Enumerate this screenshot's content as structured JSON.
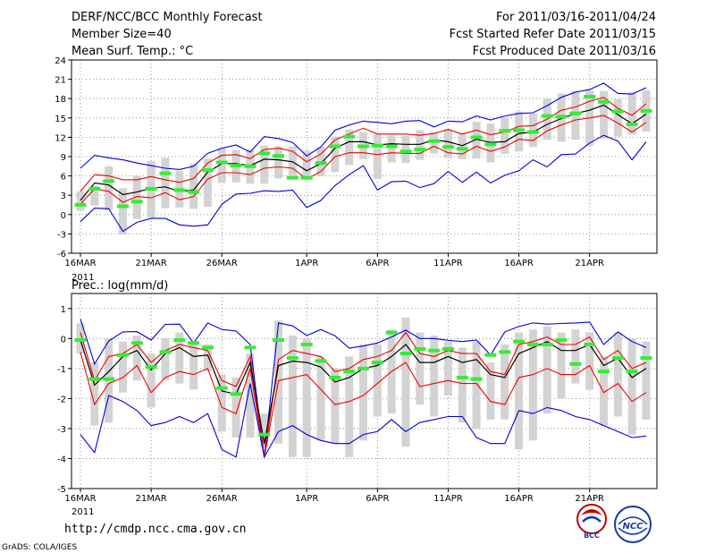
{
  "header": {
    "title": "DERF/NCC/BCC Monthly Forecast",
    "member_size": "Member Size=40",
    "period": "For 2011/03/16-2011/04/24",
    "started": "Fcst Started Refer Date 2011/03/15",
    "produced": "Fcst Produced Date 2011/03/16"
  },
  "footer": {
    "url": "http://cmdp.ncc.cma.gov.cn",
    "credit": "GrADS: COLA/IGES",
    "logo_bcc": "BCC",
    "logo_ncc": "NCC"
  },
  "colors": {
    "envelope": "#0000dd",
    "spread": "#ee0000",
    "mean": "#000000",
    "box": "#d3d3d3",
    "obs": "#33ee33"
  },
  "chart_data": [
    {
      "type": "line",
      "title": "Mean Surf. Temp.: °C",
      "ylim": [
        -6,
        24
      ],
      "yticks": [
        -6,
        -3,
        0,
        3,
        6,
        9,
        12,
        15,
        18,
        21,
        24
      ],
      "xlabels": [
        {
          "day": 0,
          "label": "16MAR"
        },
        {
          "day": 5,
          "label": "21MAR"
        },
        {
          "day": 10,
          "label": "26MAR"
        },
        {
          "day": 16,
          "label": "1APR"
        },
        {
          "day": 21,
          "label": "6APR"
        },
        {
          "day": 26,
          "label": "11APR"
        },
        {
          "day": 31,
          "label": "16APR"
        },
        {
          "day": 36,
          "label": "21APR"
        }
      ],
      "year_label": "2011",
      "series": [
        {
          "name": "max",
          "values": [
            7.2,
            9.2,
            8.8,
            8.5,
            8.0,
            7.6,
            7.2,
            7.0,
            7.5,
            9.5,
            10.3,
            10.8,
            9.7,
            12.1,
            11.8,
            11.2,
            9.1,
            10.5,
            13.1,
            13.9,
            14.5,
            14.3,
            14.1,
            14.5,
            14.6,
            13.6,
            14.5,
            14.4,
            15.3,
            14.7,
            15.3,
            15.7,
            15.8,
            16.9,
            18.2,
            19.0,
            19.4,
            20.4,
            18.8,
            18.7,
            19.7
          ]
        },
        {
          "name": "upper",
          "values": [
            3.6,
            6.2,
            6.0,
            5.4,
            5.4,
            5.9,
            5.4,
            5.0,
            5.6,
            8.0,
            9.2,
            9.3,
            8.7,
            10.1,
            10.3,
            9.8,
            8.2,
            9.4,
            11.6,
            12.5,
            13.4,
            12.5,
            12.5,
            12.5,
            12.3,
            12.6,
            13.2,
            12.5,
            13.1,
            12.4,
            12.8,
            13.7,
            13.8,
            14.8,
            16.2,
            16.7,
            17.6,
            18.2,
            16.5,
            15.4,
            17.2
          ]
        },
        {
          "name": "mean",
          "values": [
            2.2,
            4.9,
            4.6,
            3.1,
            3.5,
            4.1,
            4.3,
            3.6,
            3.8,
            6.6,
            7.9,
            7.9,
            7.6,
            8.6,
            8.5,
            8.2,
            6.8,
            7.9,
            10.3,
            11.3,
            11.3,
            10.8,
            11.0,
            10.9,
            10.9,
            11.6,
            11.3,
            10.7,
            11.7,
            11.2,
            11.3,
            12.6,
            12.8,
            14.0,
            14.9,
            15.7,
            16.2,
            17.0,
            15.5,
            14.1,
            15.6
          ]
        },
        {
          "name": "lower",
          "values": [
            1.6,
            4.0,
            3.6,
            1.9,
            2.8,
            2.6,
            3.4,
            2.3,
            2.8,
            5.5,
            6.5,
            6.5,
            6.2,
            7.2,
            7.4,
            7.2,
            5.5,
            6.7,
            9.0,
            9.6,
            9.6,
            9.3,
            9.6,
            9.5,
            9.5,
            10.6,
            9.6,
            9.4,
            10.6,
            9.8,
            10.5,
            11.7,
            11.5,
            13.0,
            13.9,
            14.7,
            15.0,
            15.4,
            14.2,
            12.8,
            14.3
          ]
        },
        {
          "name": "min",
          "values": [
            -1.1,
            1.0,
            0.9,
            -2.6,
            -1.2,
            -0.6,
            -0.6,
            -1.6,
            -1.8,
            -1.6,
            1.6,
            3.2,
            3.3,
            3.7,
            3.6,
            3.8,
            1.1,
            2.2,
            4.5,
            6.2,
            7.6,
            3.8,
            5.1,
            5.2,
            4.2,
            4.8,
            6.7,
            5.0,
            6.6,
            4.9,
            6.1,
            6.8,
            8.5,
            7.4,
            9.3,
            9.4,
            11.1,
            12.3,
            11.4,
            8.5,
            11.3
          ]
        }
      ],
      "box_low": [
        0.6,
        1.4,
        0.7,
        -3.1,
        -0.7,
        -0.5,
        1.0,
        1.1,
        0.9,
        1.2,
        4.9,
        5.0,
        4.8,
        4.8,
        5.6,
        5.9,
        6.0,
        6.0,
        6.6,
        7.7,
        8.6,
        5.5,
        8.1,
        8.0,
        8.5,
        9.5,
        8.8,
        8.6,
        8.7,
        8.1,
        9.4,
        9.8,
        10.5,
        11.6,
        11.3,
        11.6,
        10.7,
        11.8,
        12.1,
        12.4,
        12.9
      ],
      "box_high": [
        3.6,
        4.5,
        7.5,
        4.1,
        6.0,
        8.3,
        8.8,
        6.8,
        7.9,
        8.7,
        10.3,
        10.0,
        10.1,
        10.7,
        10.6,
        10.6,
        9.9,
        10.5,
        12.1,
        13.2,
        12.8,
        12.5,
        12.3,
        12.2,
        13.1,
        12.8,
        13.3,
        12.6,
        14.4,
        14.1,
        15.1,
        16.0,
        15.7,
        18.0,
        18.8,
        19.2,
        19.3,
        19.2,
        17.9,
        19.0,
        19.3
      ],
      "observed": [
        1.5,
        4.0,
        5.2,
        1.3,
        2.0,
        4.0,
        6.4,
        3.8,
        3.5,
        6.9,
        8.1,
        7.6,
        7.5,
        9.5,
        9.1,
        5.7,
        5.7,
        8.0,
        10.6,
        12.1,
        10.6,
        10.7,
        10.6,
        9.8,
        10.1,
        11.4,
        10.5,
        10.2,
        12.0,
        10.9,
        13.0,
        13.1,
        12.8,
        15.3,
        15.2,
        15.7,
        18.3,
        17.5,
        16.0,
        14.0,
        16.1
      ]
    },
    {
      "type": "line",
      "title": "Prec.: log(mm/d)",
      "ylim": [
        -5,
        1.5
      ],
      "yticks": [
        -5,
        -4,
        -3,
        -2,
        -1,
        0,
        1
      ],
      "xlabels": [
        {
          "day": 0,
          "label": "16MAR"
        },
        {
          "day": 5,
          "label": "21MAR"
        },
        {
          "day": 10,
          "label": "26MAR"
        },
        {
          "day": 16,
          "label": "1APR"
        },
        {
          "day": 21,
          "label": "6APR"
        },
        {
          "day": 26,
          "label": "11APR"
        },
        {
          "day": 31,
          "label": "16APR"
        },
        {
          "day": 36,
          "label": "21APR"
        }
      ],
      "year_label": "2011",
      "series": [
        {
          "name": "max",
          "values": [
            0.65,
            -0.85,
            -0.08,
            0.22,
            0.23,
            -0.05,
            0.47,
            0.48,
            -0.15,
            0.52,
            0.3,
            0.25,
            -0.2,
            -3.95,
            0.52,
            0.42,
            0.1,
            0.3,
            0.09,
            -0.32,
            -0.25,
            -0.15,
            0.05,
            0.28,
            0.0,
            0.0,
            -0.06,
            -0.1,
            -0.05,
            -0.55,
            0.22,
            0.4,
            0.52,
            0.48,
            0.5,
            0.52,
            0.55,
            -0.2,
            0.22,
            -0.1,
            -0.3
          ]
        },
        {
          "name": "upper",
          "values": [
            0.2,
            -1.4,
            -0.6,
            -0.5,
            -0.2,
            -0.8,
            -0.4,
            -0.2,
            -0.3,
            -0.4,
            -1.4,
            -1.6,
            -0.6,
            -3.95,
            -0.7,
            -0.4,
            -0.5,
            -0.6,
            -1.1,
            -1.0,
            -0.7,
            -0.6,
            -0.4,
            0.2,
            -0.5,
            -0.6,
            -0.4,
            -0.5,
            -0.5,
            -1.1,
            -1.2,
            -0.2,
            -0.1,
            0.05,
            -0.2,
            -0.2,
            0.05,
            -0.7,
            -0.4,
            -1.0,
            -0.8
          ]
        },
        {
          "name": "mean",
          "values": [
            -0.05,
            -1.55,
            -1.1,
            -0.6,
            -0.4,
            -1.05,
            -0.5,
            -0.3,
            -0.6,
            -0.55,
            -1.75,
            -1.85,
            -0.8,
            -3.5,
            -0.9,
            -0.75,
            -0.8,
            -0.95,
            -1.45,
            -1.3,
            -1.0,
            -0.9,
            -0.6,
            -0.2,
            -0.8,
            -0.8,
            -0.6,
            -0.8,
            -0.7,
            -1.2,
            -1.3,
            -0.5,
            -0.3,
            -0.1,
            -0.4,
            -0.4,
            -0.2,
            -0.9,
            -0.65,
            -1.3,
            -1.0
          ]
        },
        {
          "name": "lower",
          "values": [
            -0.45,
            -2.2,
            -1.5,
            -1.3,
            -0.9,
            -1.8,
            -1.3,
            -1.1,
            -1.2,
            -1.0,
            -2.3,
            -2.5,
            -1.0,
            -3.95,
            -1.4,
            -1.3,
            -1.2,
            -1.7,
            -2.2,
            -2.1,
            -1.9,
            -1.5,
            -1.1,
            -0.8,
            -1.6,
            -1.5,
            -1.4,
            -1.5,
            -1.5,
            -2.1,
            -2.2,
            -1.3,
            -1.2,
            -1.0,
            -1.2,
            -1.2,
            -0.9,
            -1.8,
            -1.5,
            -2.1,
            -1.8
          ]
        },
        {
          "name": "min",
          "values": [
            -3.2,
            -3.8,
            -1.9,
            -2.1,
            -2.4,
            -2.9,
            -2.8,
            -2.6,
            -2.8,
            -2.5,
            -3.7,
            -3.95,
            -1.5,
            -3.95,
            -3.1,
            -2.9,
            -3.2,
            -3.4,
            -3.5,
            -3.5,
            -3.2,
            -3.1,
            -2.7,
            -3.1,
            -2.8,
            -2.7,
            -2.6,
            -2.6,
            -3.3,
            -3.5,
            -3.5,
            -2.4,
            -2.5,
            -2.3,
            -2.4,
            -2.6,
            -2.7,
            -2.9,
            -3.1,
            -3.3,
            -3.25
          ]
        },
        {
          "name": "observed",
          "values": [
            -0.05,
            -1.35,
            -1.35,
            -0.55,
            -0.15,
            -0.95,
            -0.45,
            -0.05,
            -0.15,
            -0.3,
            -1.65,
            -1.85,
            -0.3,
            -3.2,
            -0.05,
            -0.65,
            -0.2,
            -0.75,
            -1.3,
            -1.1,
            -1.0,
            -0.8,
            0.2,
            -0.5,
            -0.35,
            -0.4,
            -0.35,
            -1.3,
            -1.35,
            -0.55,
            -0.45,
            -0.1,
            -0.2,
            -0.2,
            -0.05,
            -0.85,
            -0.2,
            -1.1,
            -0.65,
            -1.1,
            -0.65
          ]
        }
      ],
      "box_low": [
        -0.5,
        -2.9,
        -2.8,
        -1.8,
        -1.4,
        -2.3,
        -1.4,
        -1.5,
        -1.7,
        -1.1,
        -3.1,
        -3.3,
        -3.3,
        -3.6,
        -3.5,
        -3.95,
        -3.95,
        -3.4,
        -3.5,
        -3.95,
        -3.4,
        -2.6,
        -2.5,
        -3.6,
        -2.2,
        -2.6,
        -1.9,
        -2.8,
        -3.0,
        -2.7,
        -2.7,
        -3.7,
        -3.4,
        -2.5,
        -2.0,
        -1.5,
        -1.7,
        -2.9,
        -2.6,
        -3.2,
        -2.7
      ],
      "box_high": [
        0.5,
        -0.8,
        0.0,
        -0.1,
        0.1,
        -0.5,
        0.0,
        0.2,
        -0.1,
        -0.2,
        -1.2,
        -1.3,
        -0.5,
        -2.5,
        0.6,
        0.1,
        0.0,
        -0.6,
        -1.0,
        -0.6,
        -0.2,
        -0.2,
        0.3,
        0.7,
        0.2,
        0.1,
        -0.1,
        -0.3,
        -0.1,
        -0.8,
        -0.2,
        0.2,
        0.3,
        0.4,
        0.2,
        0.3,
        0.2,
        -0.6,
        0.2,
        0.0,
        -0.1
      ]
    }
  ]
}
